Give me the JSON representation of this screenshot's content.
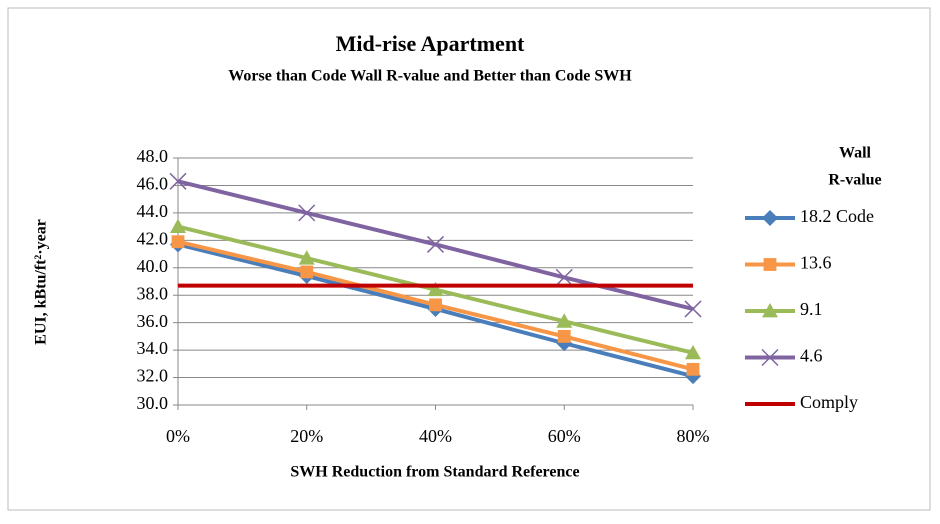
{
  "chart_data": {
    "type": "line",
    "title": "Mid-rise Apartment",
    "subtitle": "Worse than  Code  Wall R-value  and Better than  Code  SWH",
    "x_label": "SWH Reduction  from Standard  Reference",
    "y_label": "EUI,   kBtu/ft²·year",
    "legend_title": [
      "Wall",
      "R-value"
    ],
    "legend": "right",
    "grid": true,
    "categories": [
      "0%",
      "20%",
      "40%",
      "60%",
      "80%"
    ],
    "ylim": [
      30,
      48
    ],
    "yticks": [
      {
        "value": 30,
        "label": "30.0"
      },
      {
        "value": 32,
        "label": "32.0"
      },
      {
        "value": 34,
        "label": "34.0"
      },
      {
        "value": 36,
        "label": "36.0"
      },
      {
        "value": 38,
        "label": "38.0"
      },
      {
        "value": 40,
        "label": "40.0"
      },
      {
        "value": 42,
        "label": "42.0"
      },
      {
        "value": 44,
        "label": "44.0"
      },
      {
        "value": 46,
        "label": "46.0"
      },
      {
        "value": 48,
        "label": "48.0"
      }
    ],
    "series": [
      {
        "name": "18.2 Code",
        "color": "#4a7ebb",
        "marker": "diamond",
        "values": [
          41.7,
          39.4,
          37.0,
          34.5,
          32.1
        ]
      },
      {
        "name": "13.6",
        "color": "#f79646",
        "marker": "square",
        "values": [
          41.9,
          39.7,
          37.3,
          35.0,
          32.6
        ]
      },
      {
        "name": "9.1",
        "color": "#9bbb59",
        "marker": "triangle",
        "values": [
          43.0,
          40.7,
          38.4,
          36.1,
          33.8
        ]
      },
      {
        "name": "4.6",
        "color": "#8064a2",
        "marker": "x",
        "values": [
          46.3,
          44.0,
          41.7,
          39.3,
          37.0
        ]
      },
      {
        "name": "Comply",
        "color": "#c00000",
        "marker": "none",
        "values": [
          38.7,
          38.7,
          38.7,
          38.7,
          38.7
        ]
      }
    ]
  }
}
